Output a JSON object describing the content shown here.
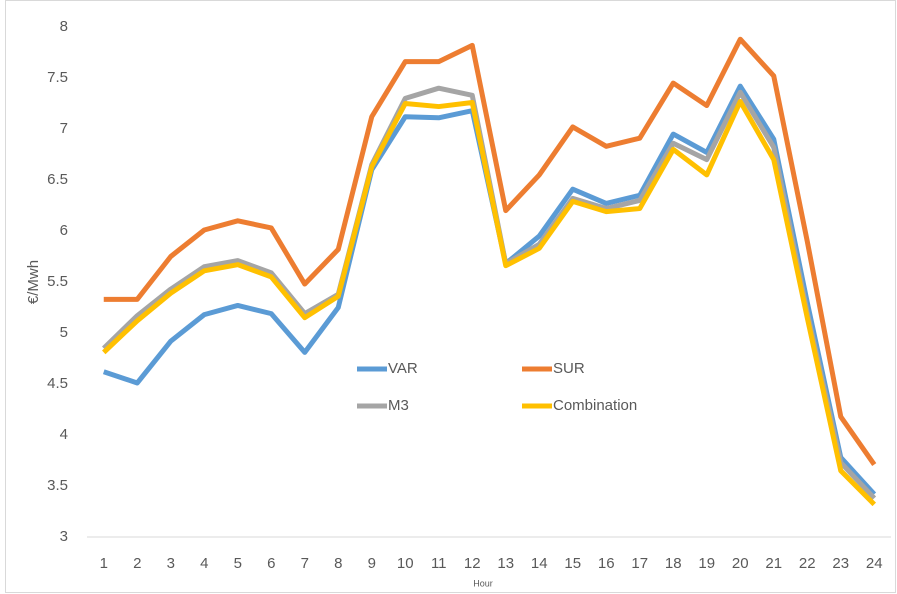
{
  "chart_data": {
    "type": "line",
    "x_label": "Hour",
    "y_label": "€/Mwh",
    "categories": [
      "1",
      "2",
      "3",
      "4",
      "5",
      "6",
      "7",
      "8",
      "9",
      "10",
      "11",
      "12",
      "13",
      "14",
      "15",
      "16",
      "17",
      "18",
      "19",
      "20",
      "21",
      "22",
      "23",
      "24"
    ],
    "series": [
      {
        "name": "VAR",
        "color": "#5b9bd5",
        "values": [
          4.62,
          4.51,
          4.92,
          5.18,
          5.27,
          5.19,
          4.81,
          5.25,
          6.6,
          7.12,
          7.11,
          7.18,
          5.68,
          5.95,
          6.41,
          6.27,
          6.35,
          6.95,
          6.77,
          7.42,
          6.9,
          5.3,
          3.78,
          3.42
        ]
      },
      {
        "name": "SUR",
        "color": "#ed7d31",
        "values": [
          5.33,
          5.33,
          5.75,
          6.01,
          6.1,
          6.03,
          5.48,
          5.82,
          7.12,
          7.66,
          7.66,
          7.82,
          6.2,
          6.55,
          7.02,
          6.83,
          6.91,
          7.45,
          7.23,
          7.88,
          7.52,
          5.9,
          4.18,
          3.71
        ]
      },
      {
        "name": "M3",
        "color": "#a5a5a5",
        "values": [
          4.85,
          5.17,
          5.43,
          5.65,
          5.71,
          5.59,
          5.19,
          5.38,
          6.65,
          7.3,
          7.4,
          7.33,
          5.68,
          5.87,
          6.32,
          6.22,
          6.3,
          6.86,
          6.7,
          7.36,
          6.82,
          5.2,
          3.73,
          3.38
        ]
      },
      {
        "name": "Combination",
        "color": "#ffc000",
        "values": [
          4.81,
          5.12,
          5.39,
          5.61,
          5.67,
          5.55,
          5.15,
          5.36,
          6.63,
          7.25,
          7.22,
          7.26,
          5.66,
          5.83,
          6.29,
          6.19,
          6.22,
          6.8,
          6.55,
          7.27,
          6.7,
          5.15,
          3.65,
          3.32
        ]
      }
    ],
    "ylim": [
      3,
      8
    ],
    "yticks": [
      3,
      3.5,
      4,
      4.5,
      5,
      5.5,
      6,
      6.5,
      7,
      7.5,
      8
    ],
    "grid": false,
    "legend": "center"
  }
}
